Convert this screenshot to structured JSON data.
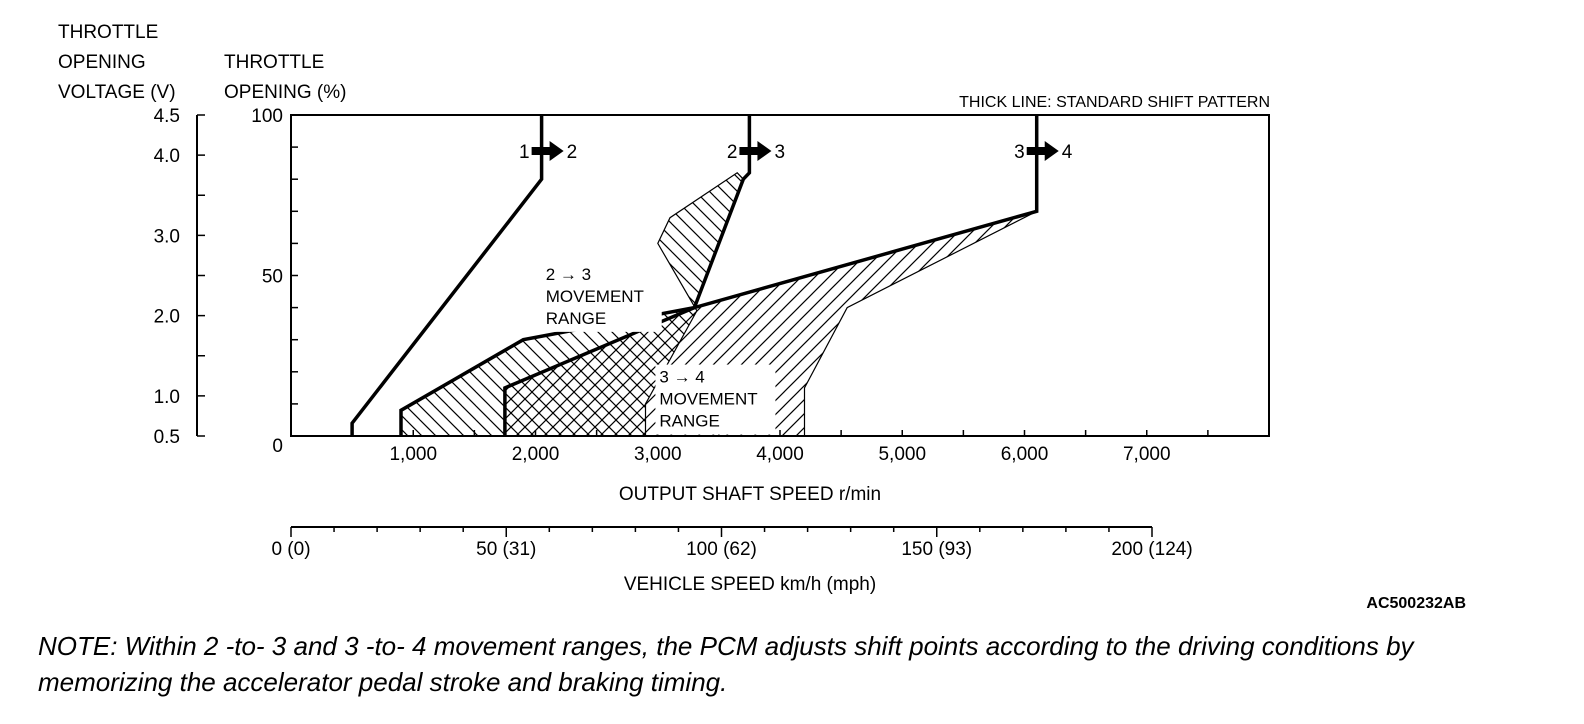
{
  "chart_data": {
    "type": "line",
    "title": "THICK LINE: STANDARD SHIFT PATTERN",
    "y_axis_voltage": {
      "title_lines": [
        "THROTTLE",
        "OPENING",
        "VOLTAGE (V)"
      ],
      "ticks": [
        {
          "value": 0.5,
          "label": "0.5"
        },
        {
          "value": 1.0,
          "label": "1.0"
        },
        {
          "value": 2.0,
          "label": "2.0"
        },
        {
          "value": 3.0,
          "label": "3.0"
        },
        {
          "value": 4.0,
          "label": "4.0"
        },
        {
          "value": 4.5,
          "label": "4.5"
        }
      ]
    },
    "y_axis_percent": {
      "title_lines": [
        "THROTTLE",
        "OPENING (%)"
      ],
      "ylim": [
        0,
        100
      ],
      "ticks": [
        {
          "value": 0,
          "label": "0"
        },
        {
          "value": 50,
          "label": "50"
        },
        {
          "value": 100,
          "label": "100"
        }
      ]
    },
    "x_axis_rpm": {
      "title": "OUTPUT SHAFT SPEED r/min",
      "xlim": [
        0,
        8000
      ],
      "ticks": [
        {
          "value": 1000,
          "label": "1,000"
        },
        {
          "value": 2000,
          "label": "2,000"
        },
        {
          "value": 3000,
          "label": "3,000"
        },
        {
          "value": 4000,
          "label": "4,000"
        },
        {
          "value": 5000,
          "label": "5,000"
        },
        {
          "value": 6000,
          "label": "6,000"
        },
        {
          "value": 7000,
          "label": "7,000"
        }
      ]
    },
    "x_axis_vehicle": {
      "title": "VEHICLE SPEED km/h (mph)",
      "xlim": [
        0,
        200
      ],
      "ticks": [
        {
          "value": 0,
          "label": "0 (0)"
        },
        {
          "value": 50,
          "label": "50 (31)"
        },
        {
          "value": 100,
          "label": "100 (62)"
        },
        {
          "value": 150,
          "label": "150 (93)"
        },
        {
          "value": 200,
          "label": "200 (124)"
        }
      ]
    },
    "series": [
      {
        "name": "1-2 standard shift",
        "from": "1",
        "to": "2",
        "points": [
          [
            500,
            0
          ],
          [
            500,
            4
          ],
          [
            2050,
            80
          ],
          [
            2050,
            100
          ]
        ]
      },
      {
        "name": "2-3 standard shift",
        "from": "2",
        "to": "3",
        "points": [
          [
            900,
            0
          ],
          [
            900,
            8
          ],
          [
            1900,
            30
          ],
          [
            3300,
            40
          ],
          [
            3700,
            80
          ],
          [
            3750,
            82
          ],
          [
            3750,
            100
          ]
        ]
      },
      {
        "name": "3-4 standard shift",
        "from": "3",
        "to": "4",
        "points": [
          [
            1750,
            0
          ],
          [
            1750,
            15
          ],
          [
            3300,
            40
          ],
          [
            6100,
            70
          ],
          [
            6100,
            100
          ]
        ]
      }
    ],
    "ranges": [
      {
        "name": "2-3 movement range",
        "label_lines": [
          "2 → 3",
          "MOVEMENT",
          "RANGE"
        ],
        "polygon": [
          [
            900,
            0
          ],
          [
            900,
            8
          ],
          [
            1900,
            30
          ],
          [
            3300,
            40
          ],
          [
            3700,
            80
          ],
          [
            3650,
            82
          ],
          [
            3100,
            68
          ],
          [
            3000,
            60
          ],
          [
            3320,
            39
          ],
          [
            2900,
            10
          ],
          [
            2900,
            0
          ]
        ]
      },
      {
        "name": "3-4 movement range",
        "label_lines": [
          "3 → 4",
          "MOVEMENT",
          "RANGE"
        ],
        "polygon": [
          [
            1750,
            0
          ],
          [
            1750,
            15
          ],
          [
            3300,
            40
          ],
          [
            6100,
            70
          ],
          [
            4550,
            40
          ],
          [
            4200,
            15
          ],
          [
            4200,
            0
          ]
        ]
      }
    ]
  },
  "figure_id": "AC500232AB",
  "note": "NOTE: Within 2 -to- 3 and 3 -to- 4 movement ranges, the PCM adjusts shift points according to the driving conditions by memorizing the accelerator pedal stroke and braking timing."
}
